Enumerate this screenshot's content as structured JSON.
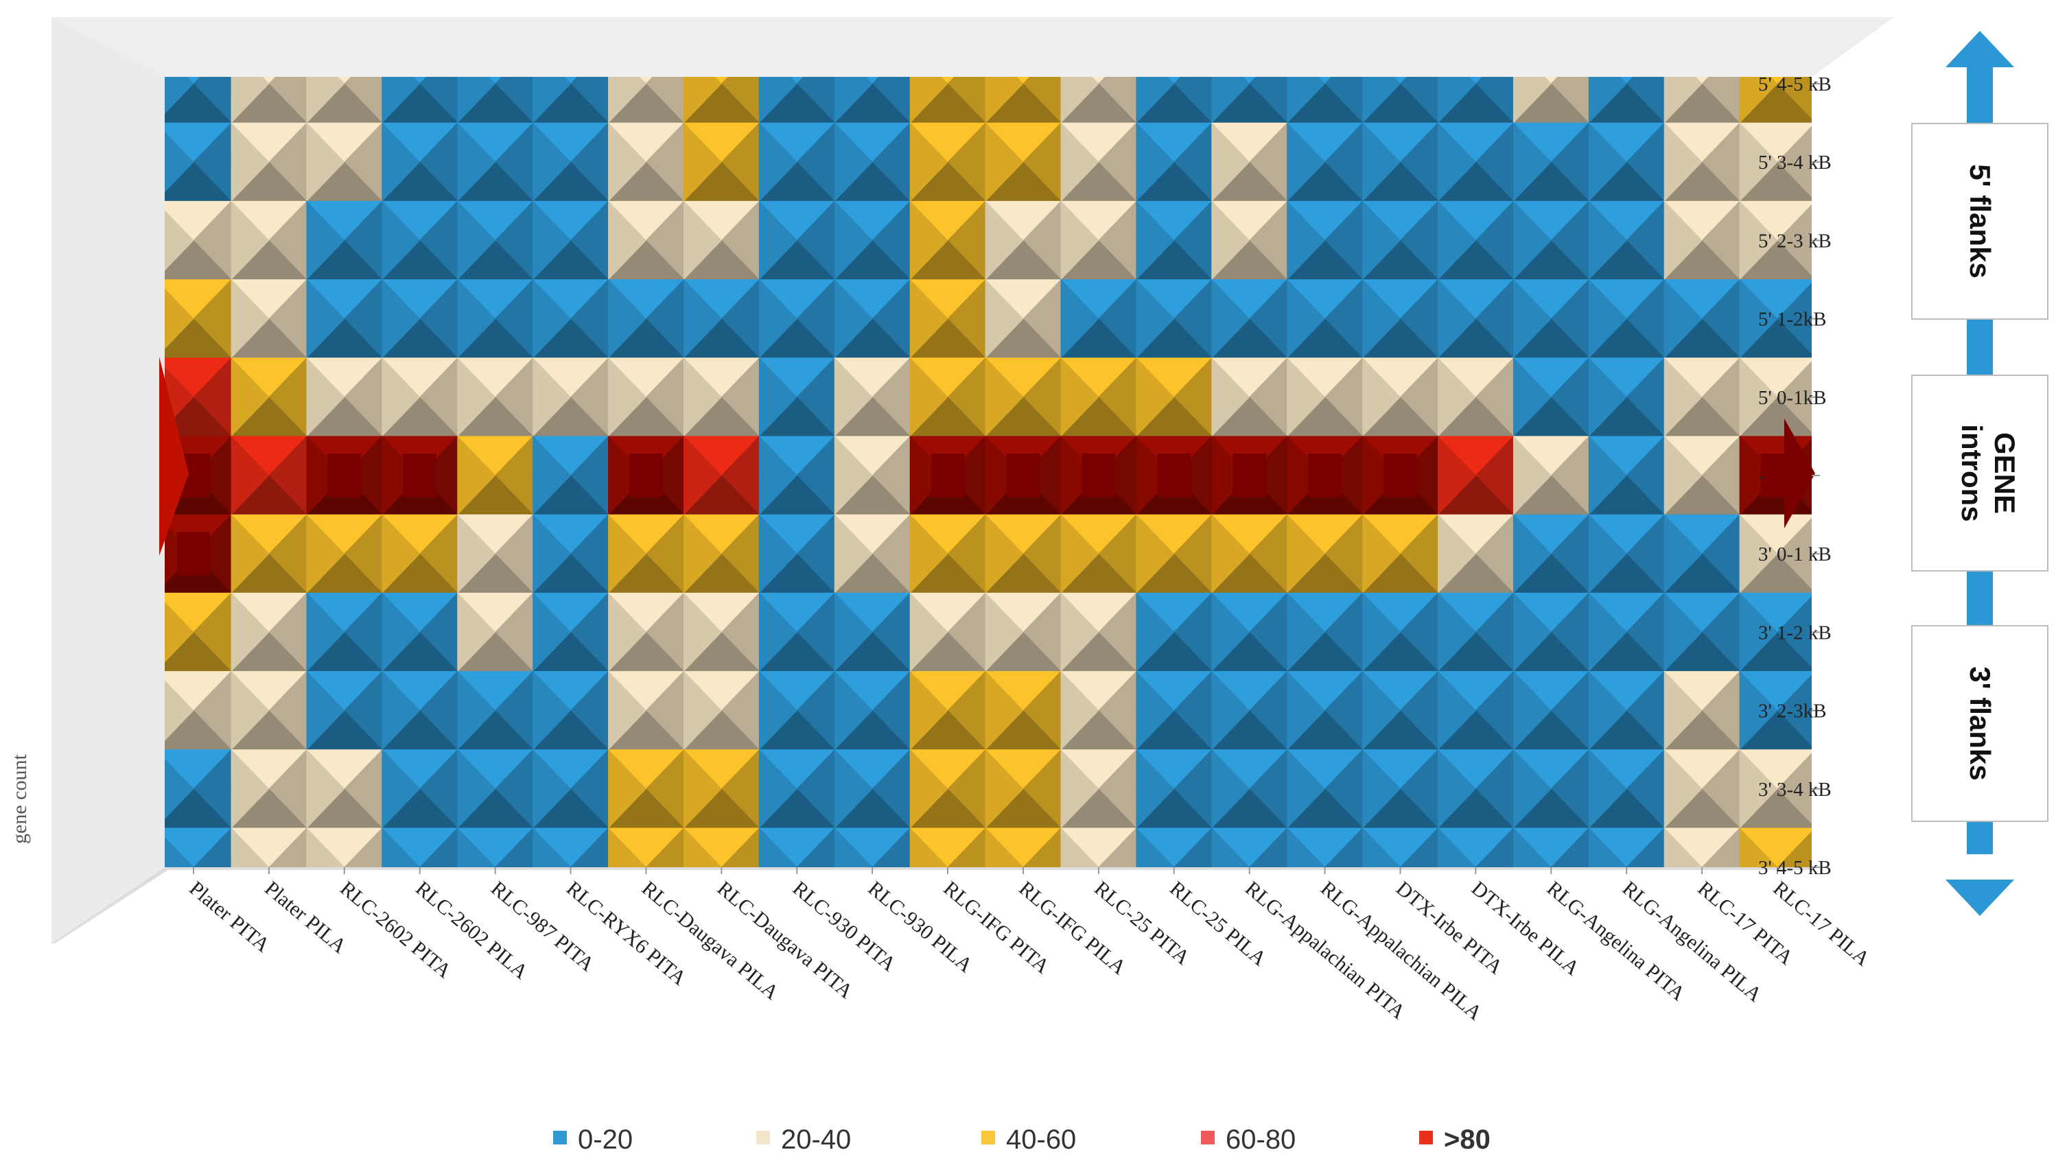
{
  "chart_data": {
    "type": "heatmap",
    "subtype": "3d-surface-contour",
    "zlabel": "gene count",
    "categories": [
      "Plater PITA",
      "Plater PILA",
      "RLC-2602 PITA",
      "RLC-2602 PILA",
      "RLC-987 PITA",
      "RLC-RYX6  PITA",
      "RLC-Daugava PILA",
      "RLC-Daugava PITA",
      "RLC-930 PITA",
      "RLC-930 PILA",
      "RLG-IFG PITA",
      "RLG-IFG PILA",
      "RLC-25 PITA",
      "RLC-25 PILA",
      "RLG-Appalachian PITA",
      "RLG-Appalachian PILA",
      "DTX-Irbe PITA",
      "DTX-Irbe PILA",
      "RLG-Angelina PITA",
      "RLG-Angelina PILA",
      "RLC-17 PITA",
      "RLC-17 PILA"
    ],
    "rows": [
      "5' 4-5 kB",
      "5' 3-4 kB",
      "5' 2-3 kB",
      "5' 1-2kB",
      "5' 0-1kB",
      "-",
      "3' 0-1 kB",
      "3' 1-2 kB",
      "3' 2-3kB",
      "3' 3-4 kB",
      "3' 4-5 kB"
    ],
    "values": [
      [
        10,
        25,
        35,
        10,
        10,
        10,
        30,
        55,
        10,
        10,
        50,
        50,
        25,
        10,
        10,
        10,
        10,
        10,
        25,
        10,
        20,
        50
      ],
      [
        10,
        30,
        35,
        10,
        10,
        10,
        35,
        50,
        10,
        10,
        55,
        45,
        25,
        10,
        30,
        10,
        10,
        10,
        10,
        10,
        25,
        30
      ],
      [
        30,
        35,
        15,
        10,
        10,
        10,
        30,
        25,
        10,
        10,
        45,
        35,
        20,
        10,
        25,
        10,
        10,
        10,
        10,
        10,
        20,
        20
      ],
      [
        55,
        30,
        10,
        10,
        15,
        10,
        15,
        10,
        10,
        10,
        40,
        30,
        10,
        10,
        10,
        10,
        10,
        10,
        10,
        10,
        10,
        10
      ],
      [
        70,
        45,
        25,
        25,
        25,
        25,
        35,
        30,
        10,
        25,
        55,
        50,
        40,
        40,
        30,
        30,
        30,
        30,
        10,
        15,
        20,
        35
      ],
      [
        95,
        70,
        85,
        85,
        40,
        10,
        85,
        70,
        10,
        30,
        90,
        95,
        95,
        90,
        90,
        90,
        85,
        70,
        20,
        15,
        30,
        95
      ],
      [
        80,
        50,
        45,
        45,
        20,
        10,
        40,
        40,
        10,
        25,
        45,
        50,
        40,
        40,
        40,
        40,
        40,
        20,
        10,
        10,
        10,
        30
      ],
      [
        45,
        30,
        10,
        10,
        25,
        10,
        25,
        35,
        10,
        10,
        30,
        35,
        25,
        10,
        10,
        10,
        10,
        10,
        10,
        10,
        10,
        10
      ],
      [
        25,
        20,
        10,
        10,
        10,
        10,
        35,
        35,
        10,
        10,
        40,
        45,
        20,
        10,
        10,
        10,
        10,
        10,
        10,
        10,
        20,
        10
      ],
      [
        10,
        30,
        30,
        10,
        10,
        10,
        40,
        45,
        10,
        10,
        50,
        50,
        25,
        10,
        10,
        10,
        10,
        10,
        10,
        10,
        30,
        20
      ],
      [
        10,
        25,
        30,
        10,
        10,
        10,
        45,
        40,
        10,
        10,
        50,
        45,
        20,
        10,
        10,
        10,
        10,
        10,
        10,
        10,
        25,
        50
      ]
    ],
    "legend": [
      {
        "label": "0-20",
        "color": "#2e9bd6"
      },
      {
        "label": "20-40",
        "color": "#f2e6cc"
      },
      {
        "label": "40-60",
        "color": "#f7c93a"
      },
      {
        "label": "60-80",
        "color": "#f05a5a"
      },
      {
        "label": ">80",
        "color": "#e8301a"
      }
    ],
    "legend_placement": "bottom-center",
    "side_boxes": [
      "5' flanks",
      "GENE introns",
      "3' flanks"
    ]
  },
  "colors": {
    "arrow": "#2b97d4",
    "dark_blue": "#0f4f74",
    "brown": "#9a6a12",
    "dark_red": "#8a0000"
  }
}
